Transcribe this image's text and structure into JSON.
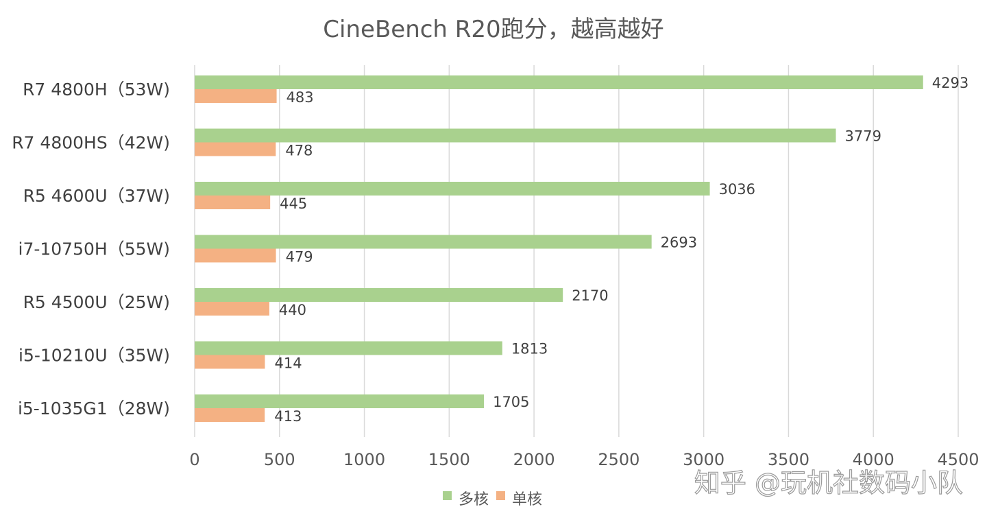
{
  "chart_data": {
    "type": "bar",
    "orientation": "horizontal",
    "title": "CineBench R20跑分，越高越好",
    "categories": [
      "R7 4800H（53W)",
      "R7 4800HS（42W)",
      "R5 4600U（37W)",
      "i7-10750H（55W)",
      "R5 4500U（25W)",
      "i5-10210U（35W)",
      "i5-1035G1（28W)"
    ],
    "series": [
      {
        "name": "多核",
        "color": "#a9d18e",
        "values": [
          4293,
          3779,
          3036,
          2693,
          2170,
          1813,
          1705
        ]
      },
      {
        "name": "单核",
        "color": "#f4b183",
        "values": [
          483,
          478,
          445,
          479,
          440,
          414,
          413
        ]
      }
    ],
    "xlim": [
      0,
      4500
    ],
    "xticks": [
      0,
      500,
      1000,
      1500,
      2000,
      2500,
      3000,
      3500,
      4000,
      4500
    ],
    "grid": true,
    "legend_position": "bottom"
  },
  "watermark": "知乎 @玩机社数码小队"
}
